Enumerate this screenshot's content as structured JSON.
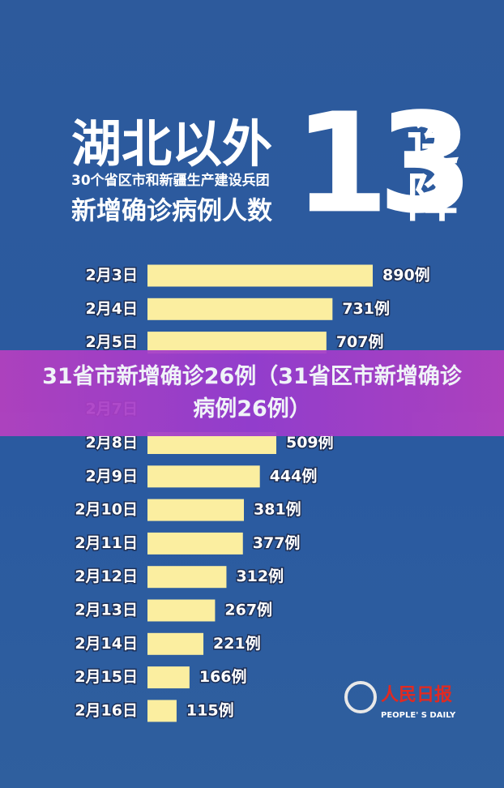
{
  "header": {
    "title": "湖北以外",
    "subtitle": "30个省区市和新疆生产建设兵团",
    "caption": "新增确诊病例人数",
    "number": "13",
    "tagline": "连降"
  },
  "chart_data": {
    "type": "bar",
    "categories": [
      "2月3日",
      "2月4日",
      "2月5日",
      null,
      "2月7日",
      "2月8日",
      "2月9日",
      "2月10日",
      "2月11日",
      "2月12日",
      "2月13日",
      "2月14日",
      "2月15日",
      "2月16日"
    ],
    "values": [
      890,
      731,
      707,
      null,
      null,
      509,
      444,
      381,
      377,
      312,
      267,
      221,
      166,
      115
    ],
    "value_labels": [
      "890例",
      "731例",
      "707例",
      null,
      null,
      "509例",
      "444例",
      "381例",
      "377例",
      "312例",
      "267例",
      "221例",
      "166例",
      "115例"
    ],
    "color": "#fbeea0"
  },
  "banner": {
    "text": "31省市新增确诊26例（31省区市新增确诊病例26例）"
  },
  "logo": {
    "name": "人民日报",
    "english": "PEOPLE' S DAILY"
  }
}
